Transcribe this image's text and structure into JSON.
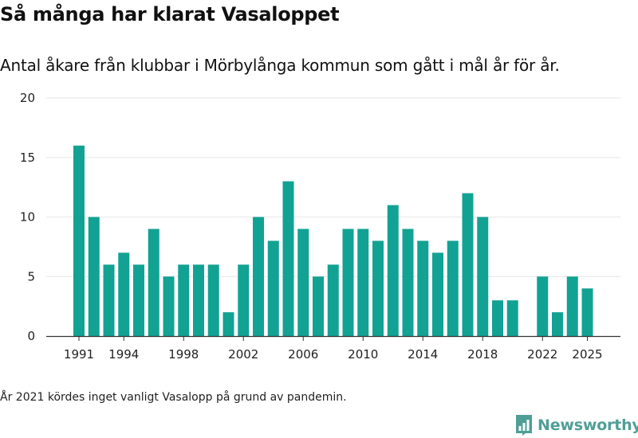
{
  "title": "Så många har klarat Vasaloppet",
  "subtitle": "Antal åkare från klubbar i Mörbylånga kommun som gått i mål år för år.",
  "footnote": "År 2021 kördes inget vanligt Vasalopp på grund av pandemin.",
  "brand": {
    "name": "Newsworthy",
    "color": "#4f9f96"
  },
  "colors": {
    "bar": "#12a293",
    "grid": "#e6e6e6",
    "axis": "#333333"
  },
  "chart_data": {
    "type": "bar",
    "x": [
      1991,
      1992,
      1993,
      1994,
      1995,
      1996,
      1997,
      1998,
      1999,
      2000,
      2001,
      2002,
      2003,
      2004,
      2005,
      2006,
      2007,
      2008,
      2009,
      2010,
      2011,
      2012,
      2013,
      2014,
      2015,
      2016,
      2017,
      2018,
      2019,
      2020,
      2021,
      2022,
      2023,
      2024,
      2025
    ],
    "values": [
      16,
      10,
      6,
      7,
      6,
      9,
      5,
      6,
      6,
      6,
      2,
      6,
      10,
      8,
      13,
      9,
      5,
      6,
      9,
      9,
      8,
      11,
      9,
      8,
      7,
      8,
      12,
      10,
      3,
      3,
      null,
      5,
      2,
      5,
      4
    ],
    "x_tick_labels": [
      "1991",
      "1994",
      "1998",
      "2002",
      "2006",
      "2010",
      "2014",
      "2018",
      "2022",
      "2025"
    ],
    "y_ticks": [
      0,
      5,
      10,
      15,
      20
    ],
    "ylim": [
      0,
      20
    ],
    "grid": true,
    "legend": "none"
  }
}
